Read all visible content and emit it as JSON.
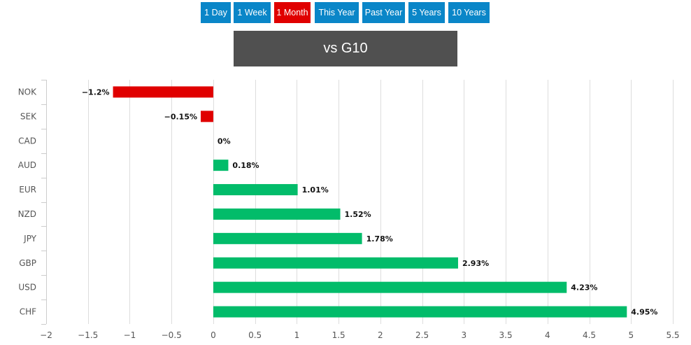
{
  "period_tabs": [
    {
      "label": "1 Day",
      "active": false
    },
    {
      "label": "1 Week",
      "active": false
    },
    {
      "label": "1 Month",
      "active": true
    },
    {
      "label": "This Year",
      "active": false
    },
    {
      "label": "Past Year",
      "active": false
    },
    {
      "label": "5 Years",
      "active": false
    },
    {
      "label": "10 Years",
      "active": false
    }
  ],
  "colors": {
    "tab": "#0a86c8",
    "tab_active": "#e00000",
    "positive": "#02bc6a",
    "negative": "#e00000",
    "grid": "#dddddd"
  },
  "chart_data": {
    "type": "bar",
    "orientation": "horizontal",
    "title": "vs G10",
    "categories": [
      "NOK",
      "SEK",
      "CAD",
      "AUD",
      "EUR",
      "NZD",
      "JPY",
      "GBP",
      "USD",
      "CHF"
    ],
    "values": [
      -1.2,
      -0.15,
      0,
      0.18,
      1.01,
      1.52,
      1.78,
      2.93,
      4.23,
      4.95
    ],
    "data_labels": [
      "−1.2%",
      "−0.15%",
      "0%",
      "0.18%",
      "1.01%",
      "1.52%",
      "1.78%",
      "2.93%",
      "4.23%",
      "4.95%"
    ],
    "xlim": [
      -2,
      5.5
    ],
    "xticks": [
      -2,
      -1.5,
      -1,
      -0.5,
      0,
      0.5,
      1,
      1.5,
      2,
      2.5,
      3,
      3.5,
      4,
      4.5,
      5,
      5.5
    ],
    "xtick_labels": [
      "−2",
      "−1.5",
      "−1",
      "−0.5",
      "0",
      "0.5",
      "1",
      "1.5",
      "2",
      "2.5",
      "3",
      "3.5",
      "4",
      "4.5",
      "5",
      "5.5"
    ],
    "grid": true,
    "legend": false
  }
}
